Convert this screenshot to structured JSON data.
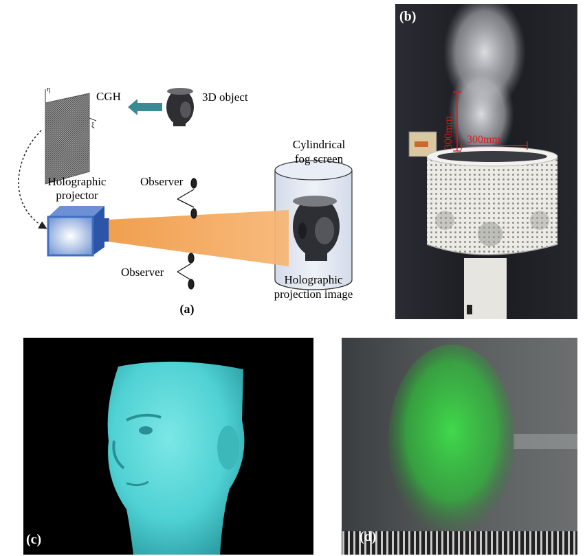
{
  "panel_a": {
    "label": "(a)",
    "cgh": "CGH",
    "object": "3D object",
    "eta": "η",
    "xi": "ξ",
    "screen_line1": "Cylindrical",
    "screen_line2": "fog screen",
    "projector_line1": "Holographic",
    "projector_line2": "projector",
    "observer_top": "Observer",
    "observer_bottom": "Observer",
    "image_line1": "Holographic",
    "image_line2": "projection image"
  },
  "panel_b": {
    "label": "(b)",
    "height_dim": "300mm",
    "width_dim": "300mm"
  },
  "panel_c": {
    "label": "(c)"
  },
  "panel_d": {
    "label": "(d)"
  },
  "colors": {
    "arrow": "#3a8a96",
    "beam": "#f2a052",
    "projector": "#3f6fc2",
    "dimension": "#e01818",
    "cyan_head": "#4fd1d3",
    "green_head": "#3fe04a"
  }
}
